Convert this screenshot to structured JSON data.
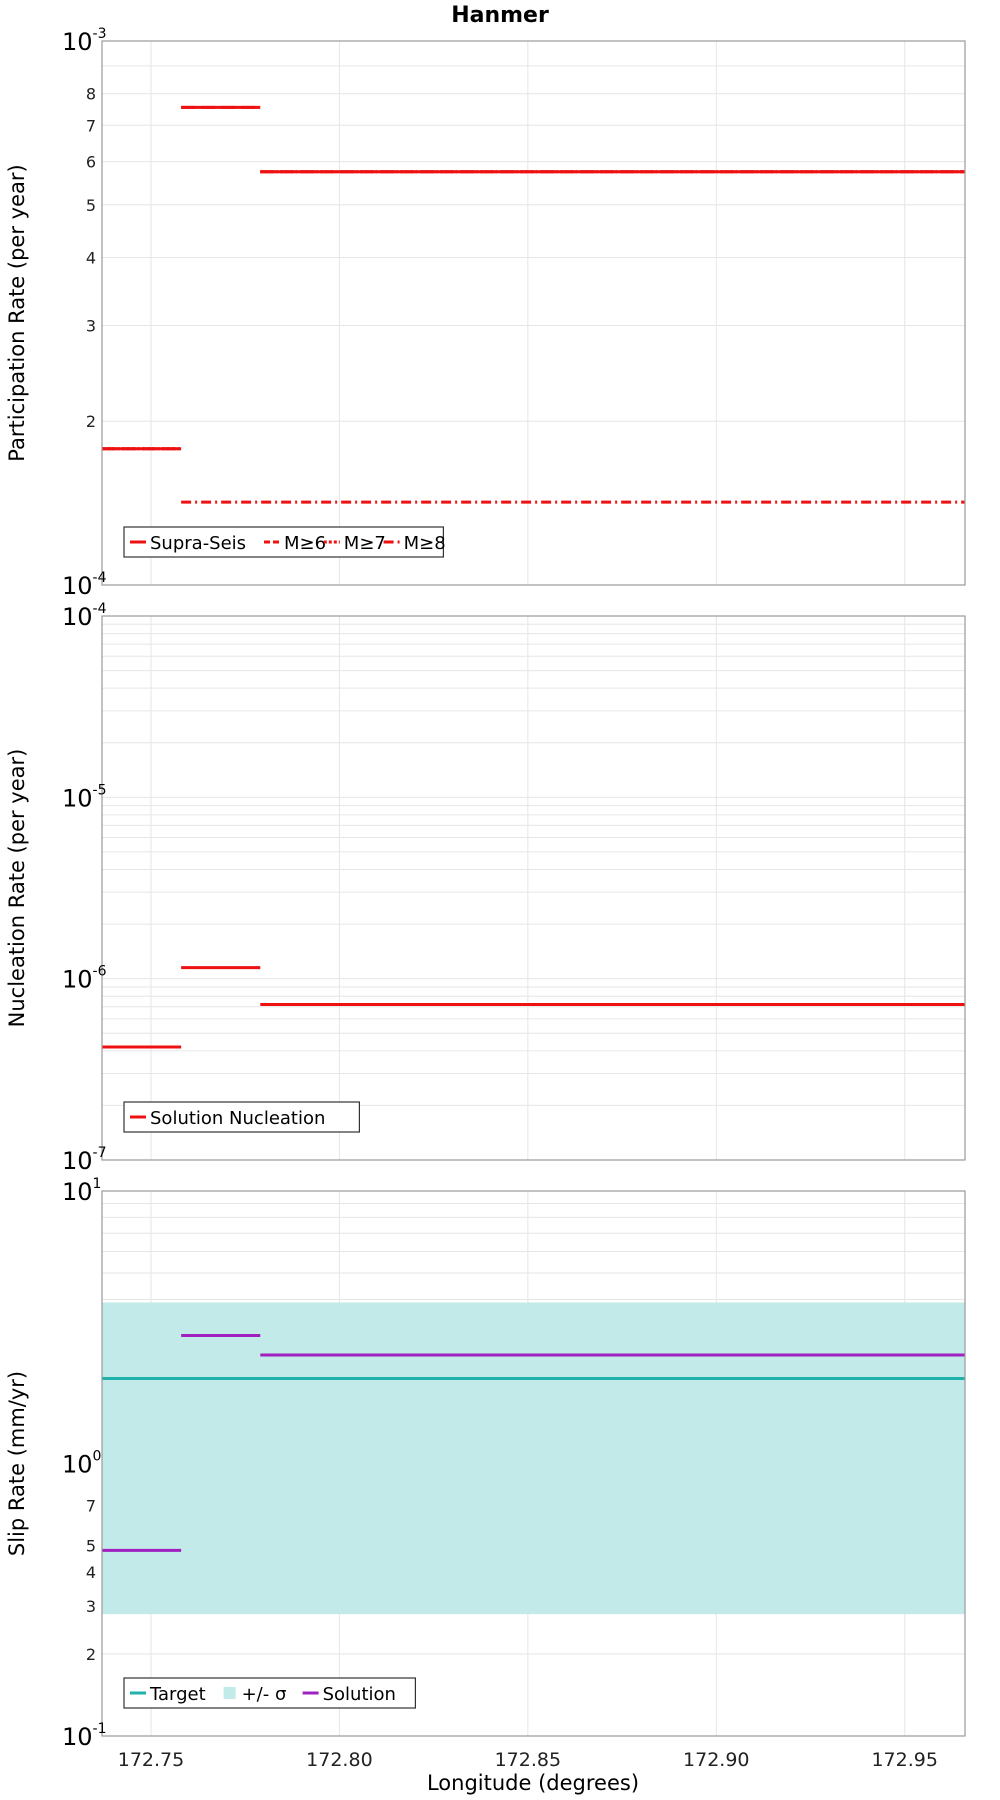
{
  "colors": {
    "solution_red": "#ee1111",
    "target_teal": "#20b2aa",
    "sigma_band": "#c2eae8",
    "solution_purple": "#a020c0",
    "grid": "#e6e6e6",
    "frame": "#9a9a9a"
  },
  "chart_data": [
    {
      "type": "line",
      "title": "Hanmer",
      "ylabel": "Participation Rate (per year)",
      "xlabel": "",
      "y_scale": "log",
      "ylim": [
        0.0001,
        0.001
      ],
      "xlim": [
        172.737,
        172.966
      ],
      "major_labels": [
        {
          "sup": "-4",
          "value": 0.0001
        },
        {
          "sup": "-3",
          "value": 0.001
        }
      ],
      "minor_labels": [
        2,
        3,
        4,
        5,
        6,
        7,
        8
      ],
      "legend": {
        "position": "bottom-left",
        "entries": [
          {
            "name": "Supra-Seis",
            "style": "solid"
          },
          {
            "name": "M≥6",
            "style": "dashed"
          },
          {
            "name": "M≥7",
            "style": "dotted"
          },
          {
            "name": "M≥8",
            "style": "dashdot"
          }
        ]
      },
      "series": [
        {
          "name": "Supra-Seis",
          "style": "solid",
          "color": "#ee1111",
          "segments": [
            [
              172.737,
              172.758,
              0.000178
            ],
            [
              172.758,
              172.779,
              0.000755
            ],
            [
              172.779,
              172.966,
              0.000575
            ]
          ]
        },
        {
          "name": "M≥6",
          "style": "dashed",
          "color": "#ee1111",
          "segments": [
            [
              172.737,
              172.758,
              0.000178
            ],
            [
              172.758,
              172.779,
              0.000755
            ],
            [
              172.779,
              172.966,
              0.000575
            ]
          ]
        },
        {
          "name": "M≥7",
          "style": "dotted",
          "color": "#ee1111",
          "segments": [
            [
              172.737,
              172.758,
              0.000178
            ],
            [
              172.779,
              172.966,
              0.000575
            ]
          ]
        },
        {
          "name": "M≥8",
          "style": "dashdot",
          "color": "#ee1111",
          "segments": [
            [
              172.758,
              172.966,
              0.000142
            ]
          ]
        }
      ]
    },
    {
      "type": "line",
      "title": "",
      "ylabel": "Nucleation Rate (per year)",
      "xlabel": "",
      "y_scale": "log",
      "ylim": [
        1e-07,
        0.0001
      ],
      "xlim": [
        172.737,
        172.966
      ],
      "major_labels": [
        {
          "sup": "-7",
          "value": 1e-07
        },
        {
          "sup": "-6",
          "value": 1e-06
        },
        {
          "sup": "-5",
          "value": 1e-05
        },
        {
          "sup": "-4",
          "value": 0.0001
        }
      ],
      "minor_labels": [],
      "legend": {
        "position": "bottom-left",
        "entries": [
          {
            "name": "Solution Nucleation",
            "style": "solid"
          }
        ]
      },
      "series": [
        {
          "name": "Solution Nucleation",
          "style": "solid",
          "color": "#ee1111",
          "segments": [
            [
              172.737,
              172.758,
              4.2e-07
            ],
            [
              172.758,
              172.779,
              1.15e-06
            ],
            [
              172.779,
              172.966,
              7.2e-07
            ]
          ]
        }
      ]
    },
    {
      "type": "line",
      "title": "",
      "ylabel": "Slip Rate (mm/yr)",
      "xlabel": "Longitude (degrees)",
      "y_scale": "log",
      "ylim": [
        0.1,
        10
      ],
      "xlim": [
        172.737,
        172.966
      ],
      "x_ticks": [
        "172.75",
        "172.80",
        "172.85",
        "172.90",
        "172.95"
      ],
      "major_labels": [
        {
          "sup": "-1",
          "value": 0.1
        },
        {
          "sup": "0",
          "value": 1
        },
        {
          "sup": "1",
          "value": 10
        }
      ],
      "minor_labels": [
        2,
        3,
        4,
        5,
        7
      ],
      "legend": {
        "position": "bottom-left",
        "entries": [
          {
            "name": "Target",
            "style": "solid"
          },
          {
            "name": "+/- σ",
            "style": "band"
          },
          {
            "name": "Solution",
            "style": "solid"
          }
        ]
      },
      "band": {
        "name": "+/- σ",
        "low": 0.28,
        "high": 3.9,
        "color": "#c2eae8"
      },
      "series": [
        {
          "name": "Target",
          "style": "solid",
          "color": "#20b2aa",
          "segments": [
            [
              172.737,
              172.966,
              2.05
            ]
          ]
        },
        {
          "name": "Solution",
          "style": "solid",
          "color": "#a020c0",
          "segments": [
            [
              172.737,
              172.758,
              0.48
            ],
            [
              172.758,
              172.779,
              2.95
            ],
            [
              172.779,
              172.966,
              2.5
            ]
          ]
        }
      ]
    }
  ]
}
